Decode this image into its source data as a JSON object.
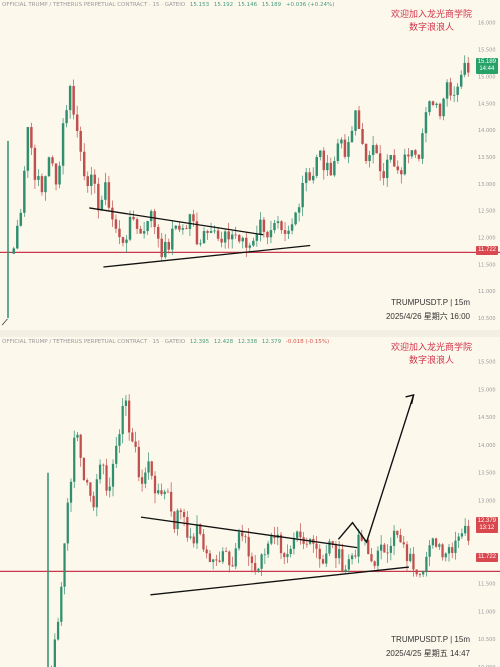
{
  "top": {
    "header": {
      "symbol": "OFFICIAL TRUMP / TETHERUS PERPETUAL CONTRACT · 15 · GATEIO",
      "o": "15.153",
      "h": "15.192",
      "l": "15.146",
      "c": "15.189",
      "change": "+0.036 (+0.24%)"
    },
    "watermark": {
      "line1": "欢迎加入龙光商学院",
      "line2": "数字浪浪人"
    },
    "footer": {
      "ticker": "TRUMPUSDT.P | 15m",
      "datetime": "2025/4/26 星期六 16:00"
    },
    "price_tag": {
      "price": "15.189",
      "countdown": "14:44"
    },
    "support_tag": "11.722"
  },
  "bottom": {
    "header": {
      "symbol": "OFFICIAL TRUMP / TETHERUS PERPETUAL CONTRACT · 15 · GATEIO",
      "o": "12.395",
      "h": "12.428",
      "l": "12.338",
      "c": "12.379",
      "change": "-0.018 (-0.15%)"
    },
    "watermark": {
      "line1": "欢迎加入龙光商学院",
      "line2": "数字浪浪人"
    },
    "footer": {
      "ticker": "TRUMPUSDT.P | 15m",
      "datetime": "2025/4/25 星期五 14:47"
    },
    "price_tag": {
      "price": "12.379",
      "countdown": "13:12"
    },
    "support_tag": "11.722"
  },
  "colors": {
    "up": "#2f8f6f",
    "down": "#c0504d",
    "support_line": "#c9384a",
    "tag_green": "#26a269",
    "tag_red": "#d9484e",
    "bg": "#fdf8ec"
  },
  "chart_data": [
    {
      "type": "candlestick",
      "title": "",
      "ylim": [
        10.5,
        16.2
      ],
      "y_ticks": [
        10.5,
        11.0,
        11.5,
        12.0,
        12.5,
        13.0,
        13.5,
        14.0,
        14.5,
        15.0,
        15.5,
        16.0
      ],
      "support_level": 11.722,
      "trendlines": [
        {
          "from": [
            0.19,
            12.55
          ],
          "to": [
            0.56,
            12.05
          ]
        },
        {
          "from": [
            0.22,
            11.45
          ],
          "to": [
            0.66,
            11.85
          ]
        }
      ],
      "path": [
        11.8,
        12.6,
        14.1,
        13.2,
        12.8,
        13.6,
        12.9,
        14.2,
        14.8,
        13.9,
        13.2,
        13.0,
        12.6,
        12.9,
        12.3,
        11.9,
        12.1,
        12.4,
        12.0,
        12.5,
        12.2,
        11.7,
        11.9,
        12.3,
        12.1,
        12.4,
        11.9,
        12.2,
        12.3,
        11.8,
        12.0,
        12.1,
        11.9,
        11.8,
        12.1,
        12.3,
        12.0,
        12.2,
        11.9,
        12.1,
        12.6,
        13.3,
        13.1,
        13.6,
        13.2,
        13.4,
        13.9,
        13.5,
        14.3,
        13.8,
        13.4,
        13.7,
        13.2,
        13.5,
        13.1,
        13.4,
        13.8,
        13.6,
        14.2,
        14.6,
        14.4,
        14.9,
        14.7,
        15.1,
        15.2
      ]
    },
    {
      "type": "candlestick",
      "title": "",
      "ylim": [
        10.0,
        15.8
      ],
      "y_ticks": [
        10.0,
        10.5,
        11.0,
        11.5,
        12.0,
        12.5,
        13.0,
        13.5,
        14.0,
        14.5,
        15.0,
        15.5
      ],
      "support_level": 11.722,
      "trendlines": [
        {
          "from": [
            0.3,
            12.7
          ],
          "to": [
            0.76,
            12.15
          ]
        },
        {
          "from": [
            0.32,
            11.3
          ],
          "to": [
            0.87,
            11.8
          ]
        }
      ],
      "projection": [
        [
          0.72,
          12.3
        ],
        [
          0.75,
          12.6
        ],
        [
          0.78,
          12.25
        ],
        [
          0.88,
          14.9
        ]
      ],
      "path": [
        10.0,
        11.2,
        13.0,
        14.3,
        13.4,
        12.9,
        13.8,
        13.1,
        14.2,
        14.7,
        14.0,
        13.3,
        13.7,
        13.0,
        13.3,
        12.6,
        12.9,
        12.2,
        12.5,
        12.0,
        11.8,
        12.2,
        11.9,
        12.4,
        12.1,
        11.7,
        12.0,
        12.5,
        12.2,
        11.9,
        12.3,
        12.1,
        12.4,
        11.9,
        12.2,
        12.0,
        11.8,
        12.1,
        12.3,
        11.9,
        12.0,
        12.2,
        12.4,
        12.1,
        11.9,
        11.8,
        12.0,
        12.3,
        12.1,
        12.2,
        12.5,
        12.4
      ]
    }
  ]
}
